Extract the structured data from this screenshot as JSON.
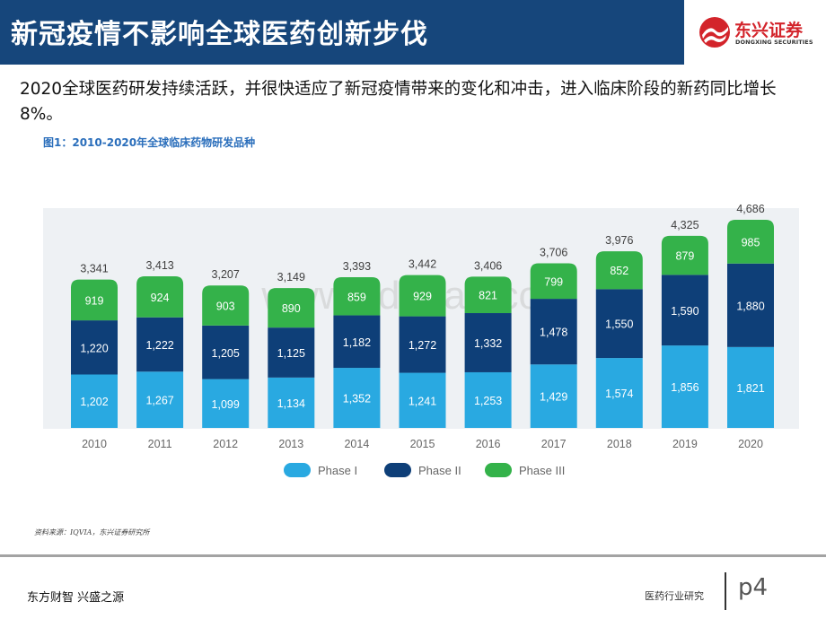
{
  "header": {
    "title": "新冠疫情不影响全球医药创新步伐"
  },
  "logo": {
    "name_cn": "东兴证券",
    "name_en": "DONGXING SECURITIES"
  },
  "intro": {
    "text": "2020全球医药研发持续活跃，并很快适应了新冠疫情带来的变化和冲击，进入临床阶段的新药同比增长8%。"
  },
  "figure": {
    "title": "图1：2010-2020年全球临床药物研发品种"
  },
  "chart_data": {
    "type": "bar",
    "stacked": true,
    "categories": [
      "2010",
      "2011",
      "2012",
      "2013",
      "2014",
      "2015",
      "2016",
      "2017",
      "2018",
      "2019",
      "2020"
    ],
    "series": [
      {
        "name": "Phase I",
        "color": "#29a9e1",
        "values": [
          1202,
          1267,
          1099,
          1134,
          1352,
          1241,
          1253,
          1429,
          1574,
          1856,
          1821
        ],
        "labels": [
          "1,202",
          "1,267",
          "1,099",
          "1,134",
          "1,352",
          "1,241",
          "1,253",
          "1,429",
          "1,574",
          "1,856",
          "1,821"
        ]
      },
      {
        "name": "Phase II",
        "color": "#0e3f78",
        "values": [
          1220,
          1222,
          1205,
          1125,
          1182,
          1272,
          1332,
          1478,
          1550,
          1590,
          1880
        ],
        "labels": [
          "1,220",
          "1,222",
          "1,205",
          "1,125",
          "1,182",
          "1,272",
          "1,332",
          "1,478",
          "1,550",
          "1,590",
          "1,880"
        ]
      },
      {
        "name": "Phase III",
        "color": "#34b24a",
        "values": [
          919,
          924,
          903,
          890,
          859,
          929,
          821,
          799,
          852,
          879,
          985
        ],
        "labels": [
          "919",
          "924",
          "903",
          "890",
          "859",
          "929",
          "821",
          "799",
          "852",
          "879",
          "985"
        ]
      }
    ],
    "totals": [
      3341,
      3413,
      3207,
      3149,
      3393,
      3442,
      3406,
      3706,
      3976,
      4325,
      4686
    ],
    "total_labels": [
      "3,341",
      "3,413",
      "3,207",
      "3,149",
      "3,393",
      "3,442",
      "3,406",
      "3,706",
      "3,976",
      "4,325",
      "4,686"
    ],
    "ylim": [
      0,
      4686
    ],
    "legend_position": "bottom-center",
    "watermark": "www.bdgaa3.com"
  },
  "source": {
    "text": "资料来源：IQVIA，东兴证券研究所"
  },
  "footer": {
    "slogan": "东方财智 兴盛之源",
    "section": "医药行业研究",
    "page": "p4"
  }
}
